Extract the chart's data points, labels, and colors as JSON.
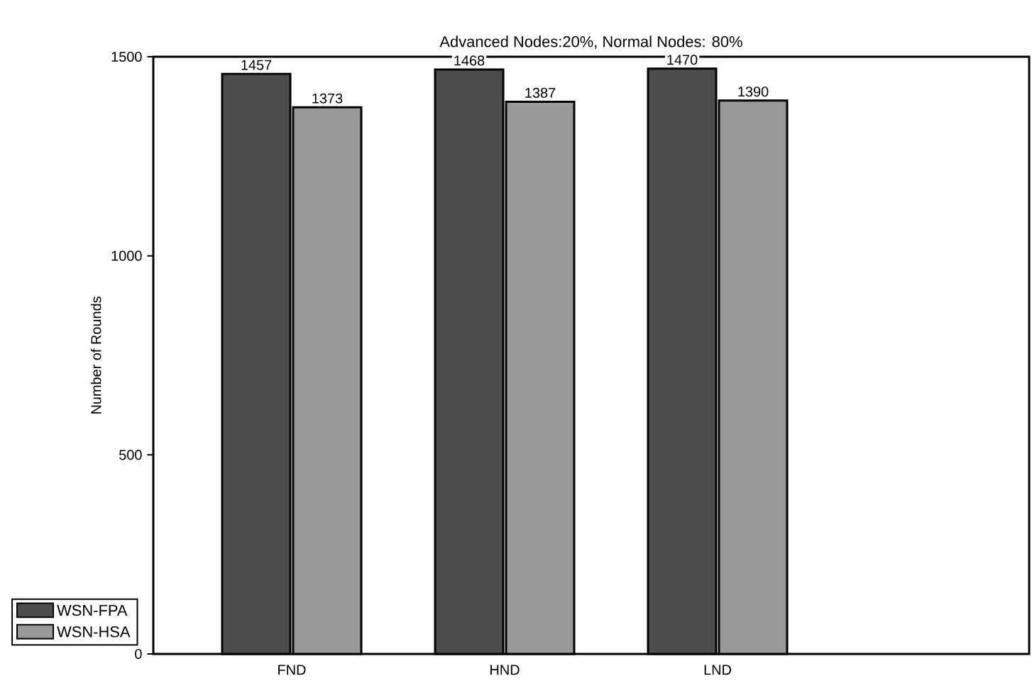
{
  "chart_data": {
    "type": "bar",
    "title": "Advanced Nodes:20%, Normal Nodes: 80%",
    "ylabel": "Number of Rounds",
    "categories": [
      "FND",
      "HND",
      "LND"
    ],
    "series": [
      {
        "name": "WSN-FPA",
        "color": "#4d4d4d",
        "values": [
          1457,
          1468,
          1470
        ]
      },
      {
        "name": "WSN-HSA",
        "color": "#999999",
        "values": [
          1373,
          1387,
          1390
        ]
      }
    ],
    "ylim": [
      0,
      1500
    ],
    "yticks": [
      0,
      500,
      1000,
      1500
    ],
    "data_labels": true,
    "legend": "bottom left"
  }
}
